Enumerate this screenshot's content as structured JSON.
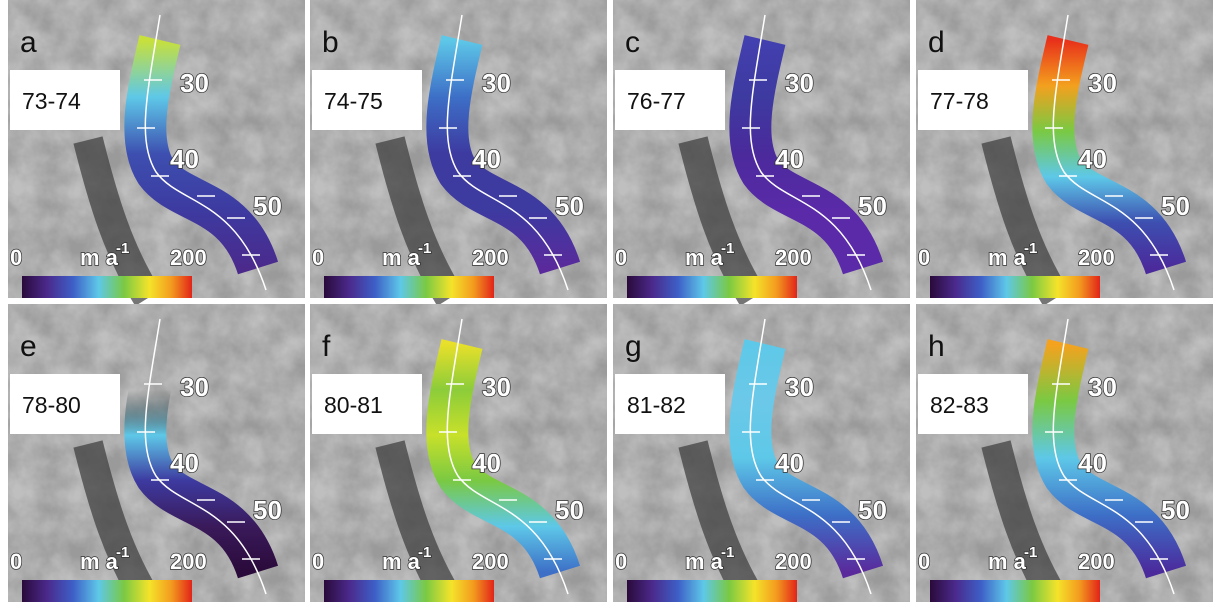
{
  "panels": [
    {
      "letter": "a",
      "period": "73-74"
    },
    {
      "letter": "b",
      "period": "74-75"
    },
    {
      "letter": "c",
      "period": "76-77"
    },
    {
      "letter": "d",
      "period": "77-78"
    },
    {
      "letter": "e",
      "period": "78-80"
    },
    {
      "letter": "f",
      "period": "80-81"
    },
    {
      "letter": "g",
      "period": "81-82"
    },
    {
      "letter": "h",
      "period": "82-83"
    }
  ],
  "distance_labels": [
    "30",
    "40",
    "50"
  ],
  "scale": {
    "min": "0",
    "unit": "m a",
    "unit_exponent": "-1",
    "max": "200"
  }
}
